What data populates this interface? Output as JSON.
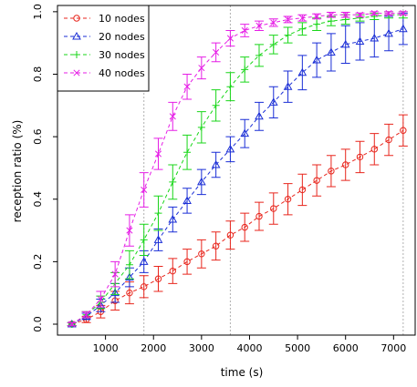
{
  "chart_data": {
    "type": "line",
    "xlabel": "time (s)",
    "ylabel": "reception ratio (%)",
    "xlim": [
      0,
      7450
    ],
    "ylim": [
      -0.035,
      1.02
    ],
    "x_ticks": [
      1000,
      2000,
      3000,
      4000,
      5000,
      6000,
      7000
    ],
    "x_tick_labels": [
      "1000",
      "2000",
      "3000",
      "4000",
      "5000",
      "6000",
      "7000"
    ],
    "y_ticks": [
      0.0,
      0.2,
      0.4,
      0.6,
      0.8,
      1.0
    ],
    "y_tick_labels": [
      "0.0",
      "0.2",
      "0.4",
      "0.6",
      "0.8",
      "1.0"
    ],
    "reference_lines_x": [
      1800,
      3600,
      7200
    ],
    "legend_position": "top-left",
    "error_bars": true,
    "x": [
      300,
      600,
      900,
      1200,
      1500,
      1800,
      2100,
      2400,
      2700,
      3000,
      3300,
      3600,
      3900,
      4200,
      4500,
      4800,
      5100,
      5400,
      5700,
      6000,
      6300,
      6600,
      6900,
      7200
    ],
    "series": [
      {
        "name": "10 nodes",
        "color": "#e8261d",
        "marker": "circle",
        "values": [
          0.0,
          0.015,
          0.04,
          0.075,
          0.1,
          0.12,
          0.145,
          0.17,
          0.2,
          0.225,
          0.25,
          0.285,
          0.31,
          0.345,
          0.37,
          0.4,
          0.43,
          0.46,
          0.49,
          0.51,
          0.535,
          0.56,
          0.59,
          0.62
        ],
        "errors": [
          0.005,
          0.01,
          0.02,
          0.03,
          0.035,
          0.035,
          0.04,
          0.04,
          0.04,
          0.045,
          0.045,
          0.045,
          0.045,
          0.045,
          0.05,
          0.05,
          0.05,
          0.05,
          0.05,
          0.05,
          0.05,
          0.05,
          0.05,
          0.05
        ]
      },
      {
        "name": "20 nodes",
        "color": "#1a2ed6",
        "marker": "triangle",
        "values": [
          0.0,
          0.025,
          0.06,
          0.1,
          0.15,
          0.2,
          0.27,
          0.335,
          0.395,
          0.455,
          0.51,
          0.56,
          0.61,
          0.665,
          0.71,
          0.76,
          0.805,
          0.845,
          0.87,
          0.895,
          0.905,
          0.915,
          0.93,
          0.945
        ],
        "errors": [
          0.005,
          0.01,
          0.02,
          0.03,
          0.03,
          0.035,
          0.035,
          0.04,
          0.04,
          0.04,
          0.04,
          0.04,
          0.045,
          0.045,
          0.05,
          0.05,
          0.055,
          0.055,
          0.06,
          0.06,
          0.06,
          0.06,
          0.055,
          0.05
        ]
      },
      {
        "name": "30 nodes",
        "color": "#19d619",
        "marker": "plus",
        "values": [
          0.0,
          0.03,
          0.07,
          0.13,
          0.19,
          0.27,
          0.355,
          0.455,
          0.55,
          0.63,
          0.7,
          0.76,
          0.815,
          0.86,
          0.895,
          0.925,
          0.945,
          0.96,
          0.97,
          0.975,
          0.98,
          0.985,
          0.99,
          0.99
        ],
        "errors": [
          0.005,
          0.01,
          0.02,
          0.035,
          0.045,
          0.05,
          0.055,
          0.055,
          0.055,
          0.05,
          0.05,
          0.045,
          0.04,
          0.035,
          0.03,
          0.025,
          0.02,
          0.02,
          0.015,
          0.015,
          0.01,
          0.01,
          0.01,
          0.01
        ]
      },
      {
        "name": "40 nodes",
        "color": "#e61ee6",
        "marker": "x",
        "values": [
          0.0,
          0.03,
          0.08,
          0.16,
          0.3,
          0.43,
          0.545,
          0.665,
          0.76,
          0.82,
          0.87,
          0.915,
          0.94,
          0.955,
          0.965,
          0.975,
          0.98,
          0.985,
          0.99,
          0.99,
          0.99,
          0.995,
          0.995,
          0.995
        ],
        "errors": [
          0.005,
          0.01,
          0.025,
          0.04,
          0.05,
          0.055,
          0.05,
          0.045,
          0.04,
          0.035,
          0.03,
          0.025,
          0.02,
          0.015,
          0.012,
          0.01,
          0.01,
          0.008,
          0.008,
          0.008,
          0.006,
          0.005,
          0.005,
          0.005
        ]
      }
    ]
  }
}
